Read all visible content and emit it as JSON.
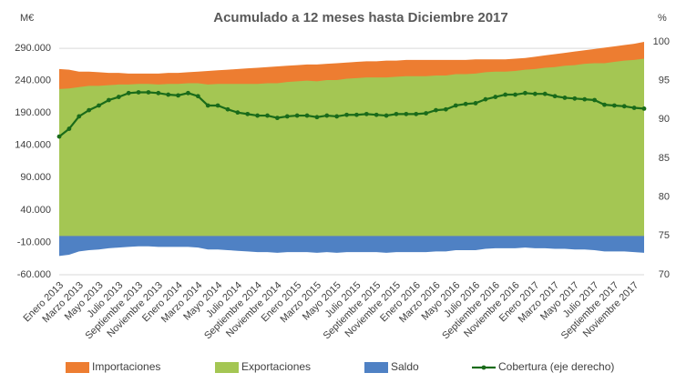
{
  "chart_data": {
    "type": "area",
    "title": "Acumulado a 12 meses hasta Diciembre 2017",
    "y_label": "M€",
    "y2_label": "%",
    "categories": [
      "Enero 2013",
      null,
      "Marzo 2013",
      null,
      "Mayo 2013",
      null,
      "Julio 2013",
      null,
      "Septiembre 2013",
      null,
      "Noviembre 2013",
      null,
      "Enero 2014",
      null,
      "Marzo 2014",
      null,
      "Mayo 2014",
      null,
      "Julio 2014",
      null,
      "Septiembre 2014",
      null,
      "Noviembre 2014",
      null,
      "Enero 2015",
      null,
      "Marzo 2015",
      null,
      "Mayo 2015",
      null,
      "Julio 2015",
      null,
      "Septiembre 2015",
      null,
      "Noviembre 2015",
      null,
      "Enero 2016",
      null,
      "Marzo 2016",
      null,
      "Mayo 2016",
      null,
      "Julio 2016",
      null,
      "Septiembre 2016",
      null,
      "Noviembre 2016",
      null,
      "Enero 2017",
      null,
      "Marzo 2017",
      null,
      "Mayo 2017",
      null,
      "Julio 2017",
      null,
      "Septiembre 2017",
      null,
      "Noviembre 2017",
      null
    ],
    "series": [
      {
        "name": "Importaciones",
        "color": "#ed7d31",
        "values": [
          258000,
          257000,
          254000,
          254000,
          253000,
          252000,
          252000,
          251000,
          251000,
          251000,
          251000,
          252000,
          252000,
          253000,
          254000,
          255000,
          256000,
          257000,
          258000,
          259000,
          260000,
          261000,
          262000,
          263000,
          264000,
          265000,
          265000,
          266000,
          267000,
          268000,
          269000,
          270000,
          270000,
          271000,
          271000,
          272000,
          272000,
          272000,
          272000,
          272000,
          272000,
          272000,
          273000,
          273000,
          273000,
          273000,
          274000,
          275000,
          277000,
          279000,
          281000,
          283000,
          285000,
          287000,
          289000,
          291000,
          293000,
          295000,
          297000,
          300000
        ]
      },
      {
        "name": "Exportaciones",
        "color": "#a4c653",
        "values": [
          227000,
          228000,
          230000,
          232000,
          232000,
          233000,
          234000,
          234000,
          235000,
          235000,
          234000,
          235000,
          235000,
          236000,
          236000,
          234000,
          235000,
          235000,
          235000,
          235000,
          235000,
          236000,
          236000,
          238000,
          239000,
          240000,
          239000,
          241000,
          241000,
          243000,
          244000,
          245000,
          245000,
          245000,
          246000,
          247000,
          247000,
          247000,
          248000,
          248000,
          250000,
          250000,
          251000,
          253000,
          254000,
          254000,
          255000,
          257000,
          258000,
          260000,
          261000,
          263000,
          264000,
          266000,
          267000,
          267000,
          269000,
          271000,
          272000,
          274000
        ]
      },
      {
        "name": "Saldo",
        "color": "#4f81c4",
        "values": [
          -31000,
          -29000,
          -24000,
          -22000,
          -21000,
          -19000,
          -18000,
          -17000,
          -16000,
          -16000,
          -17000,
          -17000,
          -17000,
          -17000,
          -18000,
          -21000,
          -21000,
          -22000,
          -23000,
          -24000,
          -25000,
          -25000,
          -26000,
          -25000,
          -25000,
          -25000,
          -26000,
          -25000,
          -26000,
          -25000,
          -25000,
          -25000,
          -25000,
          -26000,
          -25000,
          -25000,
          -25000,
          -25000,
          -24000,
          -24000,
          -22000,
          -22000,
          -22000,
          -20000,
          -19000,
          -19000,
          -19000,
          -18000,
          -19000,
          -19000,
          -20000,
          -20000,
          -21000,
          -21000,
          -22000,
          -24000,
          -24000,
          -24000,
          -25000,
          -26000
        ]
      },
      {
        "name": "Cobertura (eje derecho)",
        "color": "#1a6b1a",
        "type": "line",
        "axis": "y2",
        "values": [
          87.8,
          88.8,
          90.4,
          91.2,
          91.8,
          92.5,
          92.9,
          93.4,
          93.5,
          93.5,
          93.4,
          93.2,
          93.1,
          93.4,
          93.0,
          91.8,
          91.8,
          91.3,
          90.9,
          90.7,
          90.5,
          90.5,
          90.2,
          90.4,
          90.5,
          90.5,
          90.3,
          90.5,
          90.4,
          90.6,
          90.6,
          90.7,
          90.6,
          90.5,
          90.7,
          90.7,
          90.7,
          90.8,
          91.2,
          91.3,
          91.8,
          92.0,
          92.1,
          92.6,
          92.9,
          93.2,
          93.2,
          93.4,
          93.3,
          93.3,
          93.0,
          92.8,
          92.7,
          92.6,
          92.5,
          91.9,
          91.8,
          91.7,
          91.5,
          91.4
        ]
      }
    ],
    "ylim": [
      -60000,
      300000
    ],
    "yticks": [
      {
        "value": -60000,
        "label": "-60.000"
      },
      {
        "value": -10000,
        "label": "-10.000"
      },
      {
        "value": 40000,
        "label": "40.000"
      },
      {
        "value": 90000,
        "label": "90.000"
      },
      {
        "value": 140000,
        "label": "140.000"
      },
      {
        "value": 190000,
        "label": "190.000"
      },
      {
        "value": 240000,
        "label": "240.000"
      },
      {
        "value": 290000,
        "label": "290.000"
      }
    ],
    "y2lim": [
      70,
      100
    ],
    "y2ticks": [
      70,
      75,
      80,
      85,
      90,
      95,
      100
    ],
    "grid": true,
    "legend": "bottom"
  }
}
